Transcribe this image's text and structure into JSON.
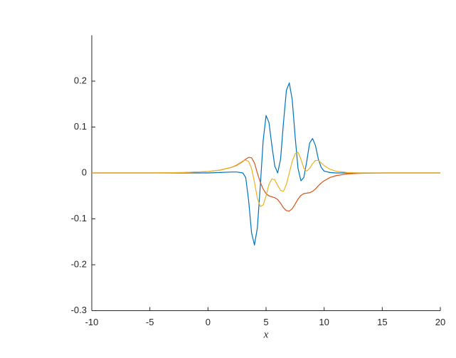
{
  "chart_data": {
    "type": "line",
    "xlabel": "x",
    "x": [
      -10,
      -5,
      -2,
      0,
      1,
      2,
      2.5,
      3,
      3.25,
      3.5,
      3.75,
      4,
      4.25,
      4.5,
      4.75,
      5,
      5.25,
      5.5,
      5.75,
      6,
      6.25,
      6.5,
      6.75,
      7,
      7.25,
      7.5,
      7.75,
      8,
      8.25,
      8.5,
      8.75,
      9,
      9.25,
      9.5,
      9.75,
      10,
      10.5,
      11,
      12,
      13,
      15,
      20
    ],
    "series": [
      {
        "color": "#0072bd",
        "values": [
          0,
          0,
          0,
          0,
          0.001,
          0.002,
          0.002,
          0,
          -0.01,
          -0.06,
          -0.13,
          -0.157,
          -0.12,
          -0.03,
          0.07,
          0.125,
          0.11,
          0.06,
          0.015,
          0,
          0.03,
          0.11,
          0.18,
          0.196,
          0.16,
          0.08,
          0.01,
          -0.017,
          -0.01,
          0.025,
          0.065,
          0.075,
          0.06,
          0.03,
          0.012,
          0.004,
          0.001,
          0,
          0,
          0,
          0,
          0
        ]
      },
      {
        "color": "#d95319",
        "values": [
          0,
          0,
          0.001,
          0.003,
          0.006,
          0.012,
          0.017,
          0.025,
          0.03,
          0.034,
          0.033,
          0.022,
          0,
          -0.02,
          -0.035,
          -0.045,
          -0.05,
          -0.052,
          -0.054,
          -0.058,
          -0.066,
          -0.076,
          -0.082,
          -0.083,
          -0.078,
          -0.068,
          -0.057,
          -0.049,
          -0.045,
          -0.044,
          -0.043,
          -0.04,
          -0.035,
          -0.028,
          -0.022,
          -0.017,
          -0.01,
          -0.006,
          -0.002,
          -0.001,
          0,
          0
        ]
      },
      {
        "color": "#edb120",
        "values": [
          0,
          0,
          0.001,
          0.003,
          0.006,
          0.012,
          0.018,
          0.026,
          0.028,
          0.025,
          0.01,
          -0.02,
          -0.055,
          -0.073,
          -0.07,
          -0.05,
          -0.025,
          -0.013,
          -0.015,
          -0.027,
          -0.038,
          -0.04,
          -0.025,
          0,
          0.025,
          0.042,
          0.045,
          0.03,
          0.01,
          0.004,
          0.01,
          0.02,
          0.027,
          0.027,
          0.022,
          0.016,
          0.008,
          0.004,
          0.001,
          0,
          0,
          0
        ]
      }
    ],
    "xlim": [
      -10,
      20
    ],
    "xticks": [
      -10,
      -5,
      0,
      5,
      10,
      15,
      20
    ],
    "ylim": [
      -0.3,
      0.3
    ],
    "yticks": [
      -0.3,
      -0.2,
      -0.1,
      0,
      0.1,
      0.2
    ]
  }
}
